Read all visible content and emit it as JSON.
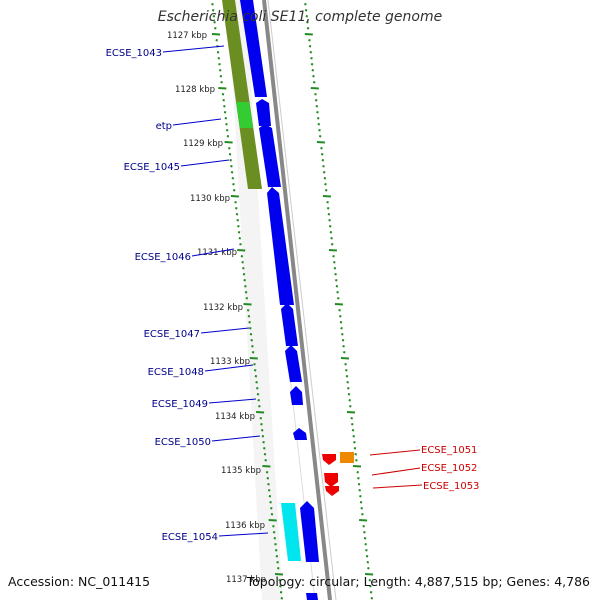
{
  "title": "Escherichia coli SE11, complete genome",
  "footer": {
    "accession": "Accession: NC_011415",
    "summary": "Topology: circular; Length: 4,887,515 bp; Genes: 4,786"
  },
  "ticks": [
    {
      "label": "1127 kbp"
    },
    {
      "label": "1128 kbp"
    },
    {
      "label": "1129 kbp"
    },
    {
      "label": "1130 kbp"
    },
    {
      "label": "1131 kbp"
    },
    {
      "label": "1132 kbp"
    },
    {
      "label": "1133 kbp"
    },
    {
      "label": "1134 kbp"
    },
    {
      "label": "1135 kbp"
    },
    {
      "label": "1136 kbp"
    },
    {
      "label": "1137 kbp"
    }
  ],
  "gene_labels_left": [
    {
      "name": "ECSE_1043"
    },
    {
      "name": "etp"
    },
    {
      "name": "ECSE_1045"
    },
    {
      "name": "ECSE_1046"
    },
    {
      "name": "ECSE_1047"
    },
    {
      "name": "ECSE_1048"
    },
    {
      "name": "ECSE_1049"
    },
    {
      "name": "ECSE_1050"
    },
    {
      "name": "ECSE_1054"
    }
  ],
  "gene_labels_right": [
    {
      "name": "ECSE_1051"
    },
    {
      "name": "ECSE_1052"
    },
    {
      "name": "ECSE_1053"
    }
  ],
  "colors": {
    "forward_gene": "#0000ee",
    "reverse_gene": "#ee0000",
    "olive_feature": "#6b8e23",
    "green_feature": "#33cc33",
    "cyan_feature": "#00e5ee",
    "orange_feature": "#ee8800",
    "backbone": "#888888",
    "tick": "#228b22",
    "label_blue": "#00008b",
    "label_red": "#cc0000"
  }
}
